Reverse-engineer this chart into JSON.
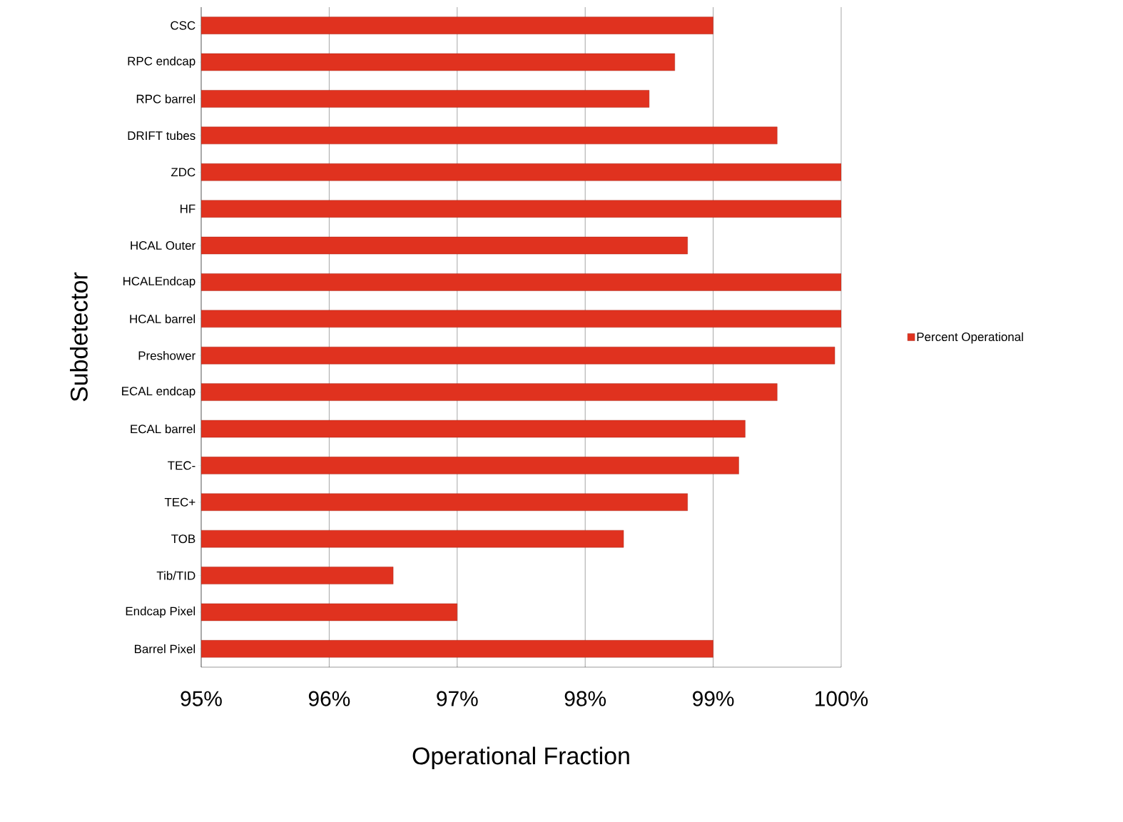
{
  "chart_data": {
    "type": "bar",
    "orientation": "horizontal",
    "xlabel": "Operational Fraction",
    "ylabel": "Subdetector",
    "categories": [
      "CSC",
      "RPC endcap",
      "RPC barrel",
      "DRIFT tubes",
      "ZDC",
      "HF",
      "HCAL Outer",
      "HCALEndcap",
      "HCAL barrel",
      "Preshower",
      "ECAL endcap",
      "ECAL barrel",
      "TEC-",
      "TEC+",
      "TOB",
      "Tib/TID",
      "Endcap Pixel",
      "Barrel Pixel"
    ],
    "series": [
      {
        "name": "Percent Operational",
        "color": "#e0321f",
        "values": [
          99.0,
          98.7,
          98.5,
          99.5,
          100,
          100,
          98.8,
          100,
          100,
          99.95,
          99.5,
          99.25,
          99.2,
          98.8,
          98.3,
          96.5,
          97.0,
          99.0
        ]
      }
    ],
    "xlim": [
      95,
      100
    ],
    "xticks": [
      {
        "value": 95,
        "label": "95%"
      },
      {
        "value": 96,
        "label": "96%"
      },
      {
        "value": 97,
        "label": "97%"
      },
      {
        "value": 98,
        "label": "98%"
      },
      {
        "value": 99,
        "label": "99%"
      },
      {
        "value": 100,
        "label": "100%"
      }
    ],
    "grid": "x",
    "legend": "right"
  }
}
